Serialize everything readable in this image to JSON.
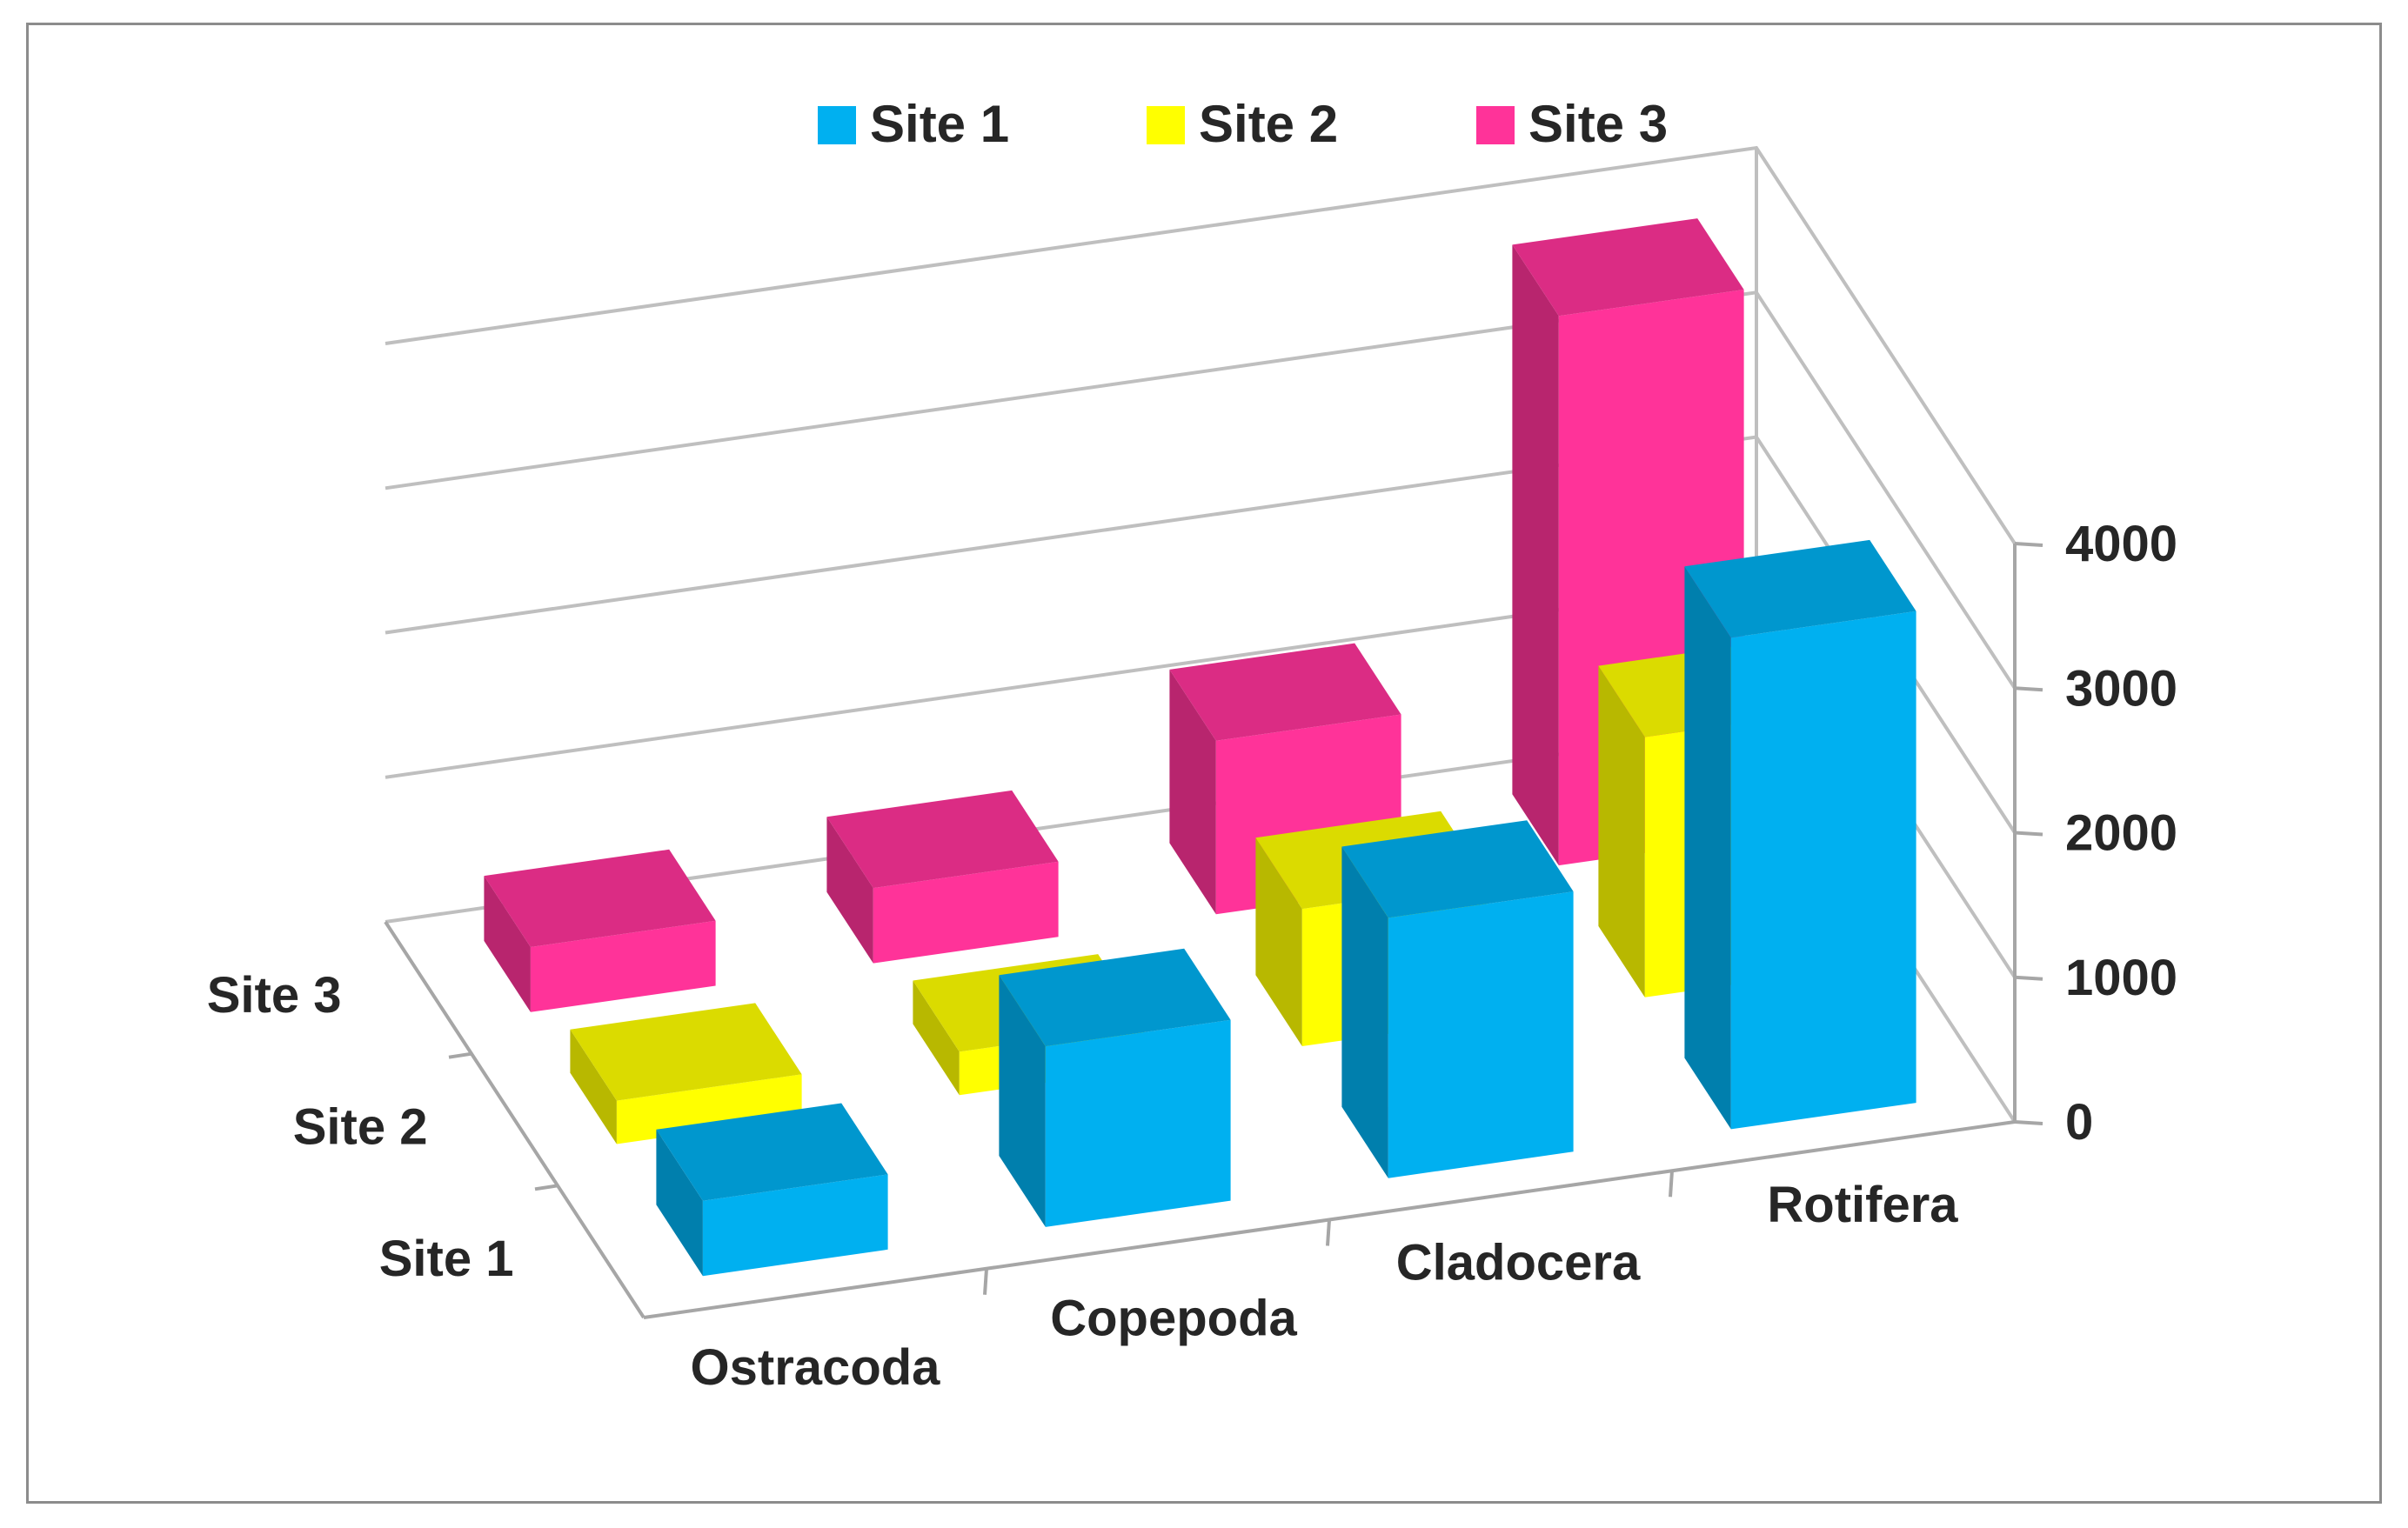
{
  "chart_data": {
    "type": "bar",
    "subtype": "3d-column",
    "categories": [
      "Ostracoda",
      "Copepoda",
      "Cladocera",
      "Rotifera"
    ],
    "depth_categories": [
      "Site 1",
      "Site 2",
      "Site 3"
    ],
    "series": [
      {
        "name": "Site 1",
        "color": "#00b0f0",
        "values": [
          520,
          1250,
          1800,
          3400
        ]
      },
      {
        "name": "Site 2",
        "color": "#ffff00",
        "values": [
          300,
          300,
          950,
          1800
        ]
      },
      {
        "name": "Site 3",
        "color": "#ff3399",
        "values": [
          450,
          520,
          1200,
          3800
        ]
      }
    ],
    "yticks": [
      "0",
      "1000",
      "2000",
      "3000",
      "4000"
    ],
    "ylim": [
      0,
      4000
    ],
    "legend_position": "top",
    "grid": true
  }
}
